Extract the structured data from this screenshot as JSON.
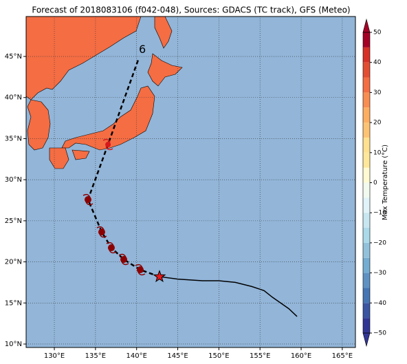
{
  "map": {
    "title": "Forecast of 2018083106 (f042-048), Sources: GDACS (TC track), GFS (Meteo)",
    "lonlim": [
      126.57,
      166.6
    ],
    "latlim": [
      9.58,
      49.86
    ],
    "lonticks": [
      {
        "value": 130,
        "label": "130°E"
      },
      {
        "value": 135,
        "label": "135°E"
      },
      {
        "value": 140,
        "label": "140°E"
      },
      {
        "value": 145,
        "label": "145°E"
      },
      {
        "value": 150,
        "label": "150°E"
      },
      {
        "value": 155,
        "label": "155°E"
      },
      {
        "value": 160,
        "label": "160°E"
      },
      {
        "value": 165,
        "label": "165°E"
      }
    ],
    "latticks": [
      {
        "value": 10,
        "label": "10°N"
      },
      {
        "value": 15,
        "label": "15°N"
      },
      {
        "value": 20,
        "label": "20°N"
      },
      {
        "value": 25,
        "label": "25°N"
      },
      {
        "value": 30,
        "label": "30°N"
      },
      {
        "value": 35,
        "label": "35°N"
      },
      {
        "value": 40,
        "label": "40°N"
      },
      {
        "value": 45,
        "label": "45°N"
      }
    ],
    "grid": true,
    "ocean_color": "#92b5d8",
    "past_track": {
      "lon": [
        142.78,
        145,
        148,
        150,
        152,
        154,
        155.5,
        156.5,
        157.5,
        158.5,
        159.5
      ],
      "lat": [
        18.2,
        17.9,
        17.7,
        17.7,
        17.5,
        17.0,
        16.5,
        15.7,
        15.0,
        14.3,
        13.35
      ]
    },
    "forecast_track": {
      "lon": [
        142.78,
        140.44,
        138.44,
        136.93,
        135.76,
        134.09,
        136.52,
        140.19
      ],
      "lat": [
        18.2,
        19.04,
        20.3,
        21.72,
        23.64,
        27.58,
        34.28,
        44.58
      ]
    },
    "current_position": {
      "lon": 142.78,
      "lat": 18.2
    },
    "storm_positions": {
      "lon": [
        140.44,
        138.44,
        136.93,
        135.76,
        134.09,
        136.52
      ],
      "lat": [
        19.04,
        20.3,
        21.72,
        23.64,
        27.58,
        34.28
      ]
    },
    "track_label": {
      "text": "6",
      "lon": 140.7,
      "lat": 45.8
    },
    "colorbar": {
      "label": "Max Temperature (°C)",
      "lim": [
        -50,
        50
      ],
      "levels": [
        -50,
        -45,
        -40,
        -35,
        -30,
        -25,
        -20,
        -15,
        -10,
        -5,
        0,
        5,
        10,
        15,
        20,
        25,
        30,
        35,
        40,
        45,
        50
      ],
      "colors": [
        "#313695",
        "#3b55a3",
        "#4575b4",
        "#5f92c3",
        "#74add1",
        "#92c1dc",
        "#abd9e9",
        "#c7e6f0",
        "#e0f3f8",
        "#f2faf0",
        "#fffad2",
        "#fee79b",
        "#fee090",
        "#fdc374",
        "#fdae61",
        "#f88e52",
        "#f46d43",
        "#e34e32",
        "#d73027",
        "#a50026"
      ],
      "ticks": [
        {
          "value": -50,
          "label": "−50"
        },
        {
          "value": -40,
          "label": "−40"
        },
        {
          "value": -30,
          "label": "−30"
        },
        {
          "value": -20,
          "label": "−20"
        },
        {
          "value": -10,
          "label": "−10"
        },
        0,
        10,
        20,
        30,
        40,
        50
      ]
    }
  }
}
